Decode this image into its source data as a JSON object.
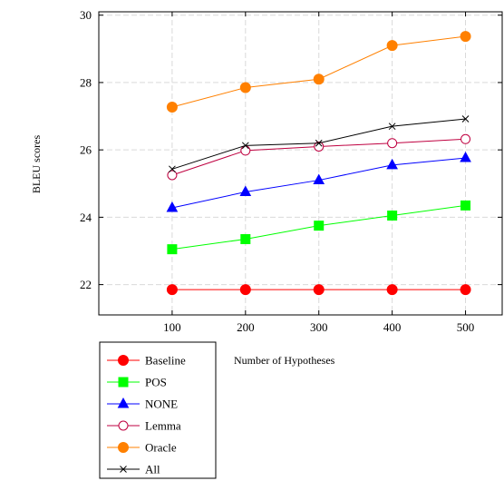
{
  "chart_data": {
    "type": "line",
    "title": "",
    "xlabel": "Number of Hypotheses",
    "ylabel": "BLEU scores",
    "x": [
      100,
      200,
      300,
      400,
      500
    ],
    "xlim": [
      0,
      550
    ],
    "ylim": [
      21.1,
      30.1
    ],
    "xticks": [
      100,
      200,
      300,
      400,
      500
    ],
    "yticks": [
      22,
      24,
      26,
      28,
      30
    ],
    "grid": true,
    "legend_position": "bottom-left (outside plot)",
    "series": [
      {
        "name": "Baseline",
        "values": [
          21.85,
          21.85,
          21.85,
          21.85,
          21.85
        ],
        "color": "#ff0000",
        "marker": "filled-circle"
      },
      {
        "name": "POS",
        "values": [
          23.05,
          23.35,
          23.75,
          24.05,
          24.35
        ],
        "color": "#00ff00",
        "marker": "filled-square"
      },
      {
        "name": "NONE",
        "values": [
          24.28,
          24.75,
          25.1,
          25.55,
          25.76
        ],
        "color": "#0000ff",
        "marker": "filled-triangle"
      },
      {
        "name": "Lemma",
        "values": [
          25.25,
          25.98,
          26.1,
          26.2,
          26.32
        ],
        "color": "#bf0040",
        "marker": "open-circle"
      },
      {
        "name": "Oracle",
        "values": [
          27.27,
          27.85,
          28.1,
          29.1,
          29.37
        ],
        "color": "#ff8000",
        "marker": "filled-circle"
      },
      {
        "name": "All",
        "values": [
          25.43,
          26.13,
          26.2,
          26.7,
          26.92
        ],
        "color": "#000000",
        "marker": "cross"
      }
    ]
  }
}
